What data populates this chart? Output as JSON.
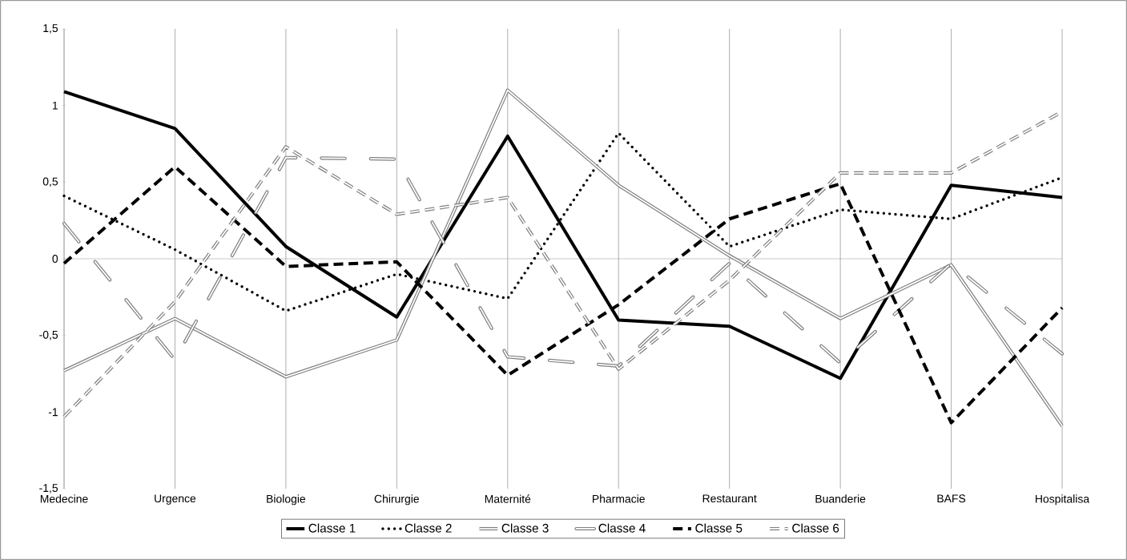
{
  "chart_data": {
    "type": "line",
    "categories": [
      "Medecine",
      "Urgence",
      "Biologie",
      "Chirurgie",
      "Maternité",
      "Pharmacie",
      "Restaurant",
      "Buanderie",
      "BAFS",
      "Hospitalisa"
    ],
    "series": [
      {
        "name": "Classe 1",
        "color": "#000000",
        "line_style": "solid",
        "values": [
          1.09,
          0.85,
          0.08,
          -0.38,
          0.8,
          -0.4,
          -0.44,
          -0.78,
          0.48,
          0.4
        ]
      },
      {
        "name": "Classe 2",
        "color": "#000000",
        "line_style": "dotted",
        "values": [
          0.41,
          0.06,
          -0.34,
          -0.1,
          -0.26,
          0.82,
          0.08,
          0.32,
          0.26,
          0.53
        ]
      },
      {
        "name": "Classe 3",
        "color": "#7f7f7f",
        "line_style": "solid",
        "values": [
          -0.73,
          -0.39,
          -0.77,
          -0.53,
          1.1,
          0.48,
          0.02,
          -0.39,
          -0.04,
          -1.09
        ]
      },
      {
        "name": "Classe 4",
        "color": "#7f7f7f",
        "line_style": "dashdot",
        "values": [
          0.23,
          -0.66,
          0.66,
          0.65,
          -0.64,
          -0.7,
          -0.03,
          -0.68,
          -0.03,
          -0.62
        ]
      },
      {
        "name": "Classe 5",
        "color": "#000000",
        "line_style": "dashed",
        "values": [
          -0.03,
          0.6,
          -0.05,
          -0.02,
          -0.76,
          -0.3,
          0.26,
          0.49,
          -1.07,
          -0.32
        ]
      },
      {
        "name": "Classe 6",
        "color": "#7f7f7f",
        "line_style": "dashed",
        "values": [
          -1.03,
          -0.28,
          0.73,
          0.29,
          0.4,
          -0.72,
          -0.14,
          0.56,
          0.56,
          0.96
        ]
      }
    ],
    "ylim": [
      -1.5,
      1.5
    ],
    "yticks": [
      {
        "value": -1.5,
        "label": "-1,5"
      },
      {
        "value": -1,
        "label": "-1"
      },
      {
        "value": -0.5,
        "label": "-0,5"
      },
      {
        "value": 0,
        "label": "0"
      },
      {
        "value": 0.5,
        "label": "0,5"
      },
      {
        "value": 1,
        "label": "1"
      },
      {
        "value": 1.5,
        "label": "1,5"
      }
    ],
    "grid": "x",
    "legend": "bottom",
    "marker": "none"
  }
}
